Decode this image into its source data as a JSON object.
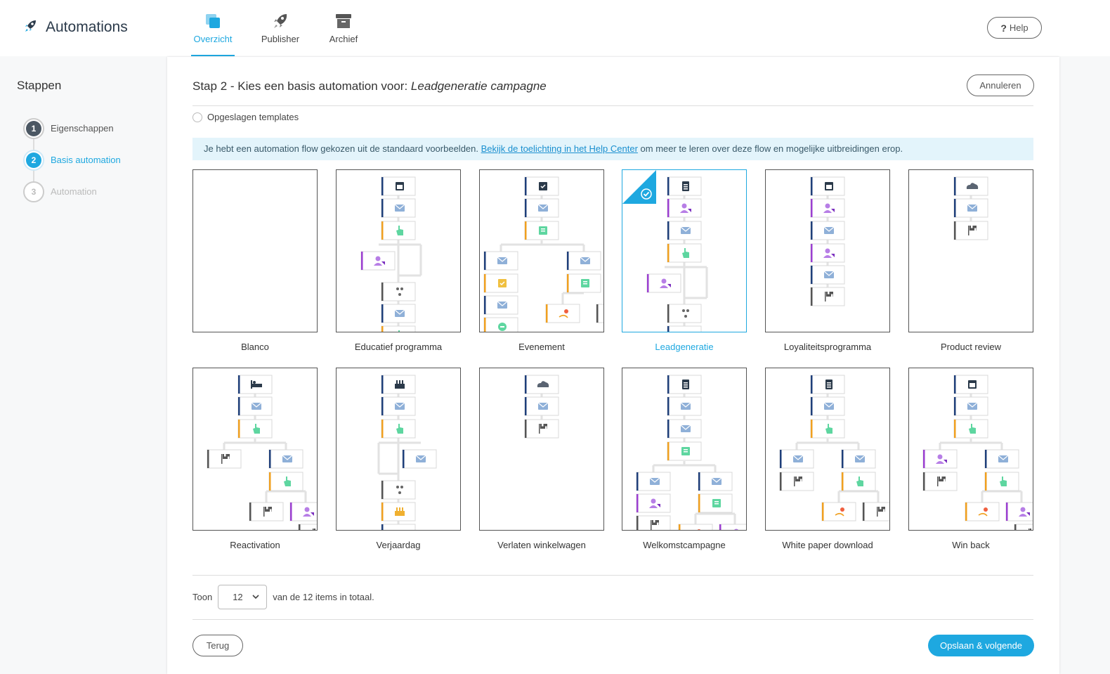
{
  "app": {
    "title": "Automations",
    "logo_icon": "rocket-icon"
  },
  "nav": {
    "tabs": [
      {
        "label": "Overzicht",
        "icon": "overview-icon",
        "active": true
      },
      {
        "label": "Publisher",
        "icon": "rocket-icon",
        "active": false
      },
      {
        "label": "Archief",
        "icon": "archive-icon",
        "active": false
      }
    ]
  },
  "header": {
    "help_label": "Help",
    "help_icon_glyph": "?"
  },
  "sidebar": {
    "title": "Stappen",
    "steps": [
      {
        "number": "1",
        "label": "Eigenschappen",
        "state": "done"
      },
      {
        "number": "2",
        "label": "Basis automation",
        "state": "active"
      },
      {
        "number": "3",
        "label": "Automation",
        "state": "todo"
      }
    ]
  },
  "main": {
    "title_prefix": "Stap 2 - Kies een basis automation voor: ",
    "title_campaign": "Leadgeneratie campagne",
    "cancel_label": "Annuleren",
    "saved_templates_label": "Opgeslagen templates",
    "info": {
      "text_before": "Je hebt een automation flow gekozen uit de standaard voorbeelden. ",
      "link_text": "Bekijk de toelichting in het Help Center",
      "text_after": " om meer te leren over deze flow en mogelijke uitbreidingen erop."
    },
    "templates": [
      {
        "name": "Blanco",
        "selected": false
      },
      {
        "name": "Educatief programma",
        "selected": false
      },
      {
        "name": "Evenement",
        "selected": false
      },
      {
        "name": "Leadgeneratie",
        "selected": true
      },
      {
        "name": "Loyaliteitsprogramma",
        "selected": false
      },
      {
        "name": "Product review",
        "selected": false
      },
      {
        "name": "Reactivation",
        "selected": false
      },
      {
        "name": "Verjaardag",
        "selected": false
      },
      {
        "name": "Verlaten winkelwagen",
        "selected": false
      },
      {
        "name": "Welkomstcampagne",
        "selected": false
      },
      {
        "name": "White paper download",
        "selected": false
      },
      {
        "name": "Win back",
        "selected": false
      }
    ],
    "paging": {
      "show_label": "Toon",
      "page_size": "12",
      "total_text": "van de 12 items in totaal."
    },
    "back_label": "Terug",
    "save_label": "Opslaan & volgende"
  },
  "colors": {
    "accent": "#1ea8e0",
    "navy": "#1f3f7a",
    "orange": "#f0a020",
    "purple": "#9b3fd0",
    "gray": "#555555",
    "info_bg": "#e3f4fb"
  }
}
